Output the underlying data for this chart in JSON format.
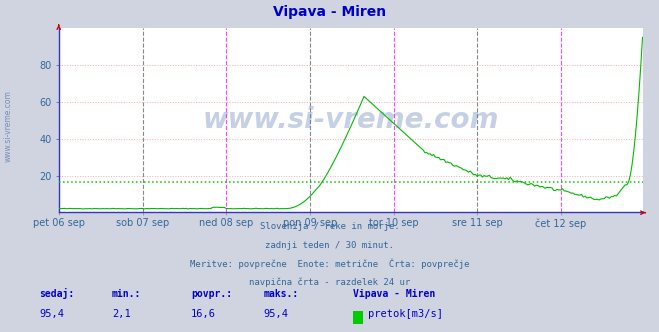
{
  "title": "Vipava - Miren",
  "title_color": "#0000cc",
  "bg_color": "#d0d4e0",
  "plot_bg_color": "#ffffff",
  "grid_color_h": "#ffaaaa",
  "grid_color_v": "#cccccc",
  "line_color": "#00bb00",
  "avg_line_color": "#00cc00",
  "avg_value": 16.6,
  "ylim": [
    0,
    100
  ],
  "yticks": [
    20,
    40,
    60,
    80
  ],
  "x_labels": [
    "pet 06 sep",
    "sob 07 sep",
    "ned 08 sep",
    "pon 09 sep",
    "tor 10 sep",
    "sre 11 sep",
    "čet 12 sep"
  ],
  "vline_color": "#ff44ff",
  "vline_color2": "#666666",
  "spine_color": "#3333bb",
  "watermark": "www.si-vreme.com",
  "watermark_color": "#4466aa",
  "watermark_alpha": 0.3,
  "sidebar_text": "www.si-vreme.com",
  "sidebar_color": "#5577aa",
  "xlabel_color": "#336699",
  "ylabel_color": "#336699",
  "footer_lines": [
    "Slovenija / reke in morje.",
    "zadnji teden / 30 minut.",
    "Meritve: povprečne  Enote: metrične  Črta: povprečje",
    "navpična črta - razdelek 24 ur"
  ],
  "footer_color": "#336699",
  "stats_labels": [
    "sedaj:",
    "min.:",
    "povpr.:",
    "maks.:"
  ],
  "stats_values": [
    "95,4",
    "2,1",
    "16,6",
    "95,4"
  ],
  "stats_color": "#0000cc",
  "legend_label": "pretok[m3/s]",
  "legend_color": "#00cc00",
  "legend_station": "Vipava - Miren",
  "n_points": 336,
  "arrow_color": "#cc0000"
}
